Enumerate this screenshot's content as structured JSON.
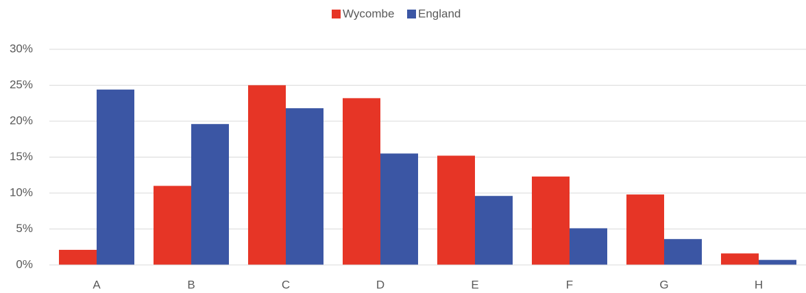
{
  "chart_data": {
    "type": "bar",
    "categories": [
      "A",
      "B",
      "C",
      "D",
      "E",
      "F",
      "G",
      "H"
    ],
    "series": [
      {
        "name": "Wycombe",
        "color": "#e63526",
        "values": [
          2.1,
          11.0,
          25.0,
          23.2,
          15.2,
          12.3,
          9.8,
          1.6
        ]
      },
      {
        "name": "England",
        "color": "#3b56a4",
        "values": [
          24.4,
          19.6,
          21.8,
          15.5,
          9.6,
          5.1,
          3.6,
          0.7
        ]
      }
    ],
    "ylim": [
      0,
      30
    ],
    "yticks": [
      {
        "value": 0,
        "label": "0%"
      },
      {
        "value": 5,
        "label": "5%"
      },
      {
        "value": 10,
        "label": "10%"
      },
      {
        "value": 15,
        "label": "15%"
      },
      {
        "value": 20,
        "label": "20%"
      },
      {
        "value": 25,
        "label": "25%"
      },
      {
        "value": 30,
        "label": "30%"
      }
    ],
    "grid": true,
    "legend": "top"
  }
}
